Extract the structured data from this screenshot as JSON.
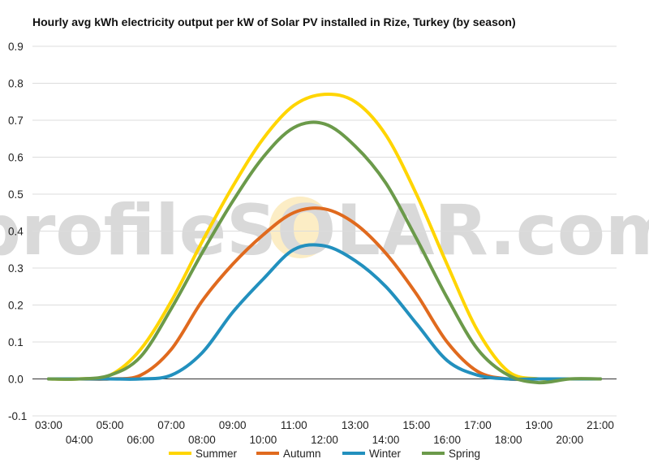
{
  "chart_data": {
    "type": "line",
    "title": "Hourly avg kWh electricity output per kW of Solar PV installed in Rize, Turkey (by season)",
    "xlabel": "",
    "ylabel": "",
    "ylim": [
      -0.1,
      0.9
    ],
    "yticks": [
      "-0.1",
      "0.0",
      "0.1",
      "0.2",
      "0.3",
      "0.4",
      "0.5",
      "0.6",
      "0.7",
      "0.8",
      "0.9"
    ],
    "categories": [
      "03:00",
      "04:00",
      "05:00",
      "06:00",
      "07:00",
      "08:00",
      "09:00",
      "10:00",
      "11:00",
      "12:00",
      "13:00",
      "14:00",
      "15:00",
      "16:00",
      "17:00",
      "18:00",
      "19:00",
      "20:00",
      "21:00"
    ],
    "grid": true,
    "legend": "bottom",
    "watermark": "profileSOLAR.com",
    "series": [
      {
        "name": "Summer",
        "color": "#FFD500",
        "values": [
          0,
          0,
          0.01,
          0.08,
          0.21,
          0.37,
          0.52,
          0.65,
          0.74,
          0.77,
          0.75,
          0.66,
          0.5,
          0.31,
          0.13,
          0.02,
          0.0,
          0.0,
          0.0
        ]
      },
      {
        "name": "Autumn",
        "color": "#E06A1E",
        "values": [
          0,
          0,
          0,
          0.01,
          0.08,
          0.21,
          0.31,
          0.39,
          0.45,
          0.46,
          0.42,
          0.34,
          0.23,
          0.1,
          0.02,
          0.0,
          0.0,
          0.0,
          0.0
        ]
      },
      {
        "name": "Winter",
        "color": "#2290BE",
        "values": [
          0,
          0,
          0,
          0,
          0.01,
          0.07,
          0.18,
          0.27,
          0.35,
          0.36,
          0.32,
          0.25,
          0.15,
          0.05,
          0.01,
          0.0,
          0.0,
          0.0,
          0.0
        ]
      },
      {
        "name": "Spring",
        "color": "#6B9A4A",
        "values": [
          0,
          0,
          0.01,
          0.06,
          0.19,
          0.34,
          0.48,
          0.6,
          0.68,
          0.69,
          0.63,
          0.53,
          0.38,
          0.22,
          0.08,
          0.01,
          -0.01,
          0.0,
          0.0
        ]
      }
    ]
  }
}
